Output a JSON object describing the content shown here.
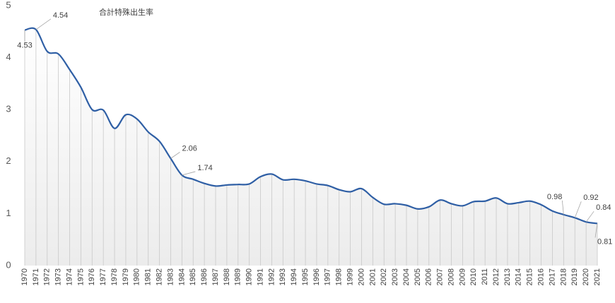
{
  "chart_data": {
    "type": "line",
    "title": "合計特殊出生率",
    "categories": [
      "1970",
      "1971",
      "1972",
      "1973",
      "1974",
      "1975",
      "1976",
      "1977",
      "1978",
      "1979",
      "1980",
      "1981",
      "1982",
      "1983",
      "1984",
      "1985",
      "1986",
      "1987",
      "1988",
      "1989",
      "1990",
      "1991",
      "1992",
      "1993",
      "1994",
      "1995",
      "1996",
      "1997",
      "1998",
      "1999",
      "2000",
      "2001",
      "2002",
      "2003",
      "2004",
      "2005",
      "2006",
      "2007",
      "2008",
      "2009",
      "2010",
      "2011",
      "2012",
      "2013",
      "2014",
      "2015",
      "2016",
      "2017",
      "2018",
      "2019",
      "2020",
      "2021"
    ],
    "series": [
      {
        "color": "#2f5fa5",
        "values": [
          4.53,
          4.54,
          4.12,
          4.07,
          3.77,
          3.43,
          3.0,
          2.99,
          2.64,
          2.9,
          2.82,
          2.57,
          2.39,
          2.06,
          1.74,
          1.66,
          1.58,
          1.53,
          1.55,
          1.56,
          1.57,
          1.71,
          1.76,
          1.65,
          1.66,
          1.63,
          1.57,
          1.54,
          1.46,
          1.42,
          1.48,
          1.31,
          1.18,
          1.19,
          1.16,
          1.09,
          1.13,
          1.26,
          1.19,
          1.15,
          1.23,
          1.24,
          1.3,
          1.19,
          1.21,
          1.24,
          1.17,
          1.05,
          0.98,
          0.92,
          0.84,
          0.81
        ],
        "value_labels": [
          "4.53",
          "4.54",
          null,
          null,
          null,
          null,
          null,
          null,
          null,
          null,
          null,
          null,
          null,
          "2.06",
          "1.74",
          null,
          null,
          null,
          null,
          null,
          null,
          null,
          null,
          null,
          null,
          null,
          null,
          null,
          null,
          null,
          null,
          null,
          null,
          null,
          null,
          null,
          null,
          null,
          null,
          null,
          null,
          null,
          null,
          null,
          null,
          null,
          null,
          null,
          "0.98",
          "0.92",
          "0.84",
          "0.81"
        ]
      }
    ],
    "ylim": [
      0,
      5
    ],
    "yticks": [
      0,
      1,
      2,
      3,
      4,
      5
    ],
    "drop_lines": true
  }
}
